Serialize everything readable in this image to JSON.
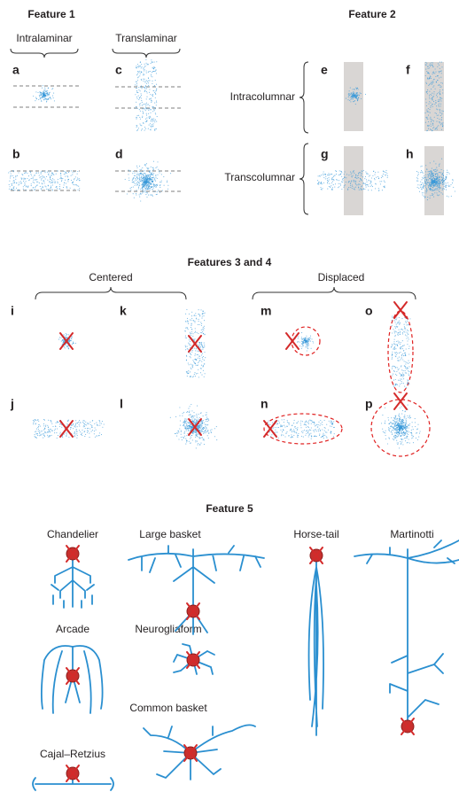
{
  "feature1": {
    "title": "Feature 1",
    "columns": [
      "Intralaminar",
      "Translaminar"
    ],
    "panels": [
      "a",
      "b",
      "c",
      "d"
    ]
  },
  "feature2": {
    "title": "Feature 2",
    "rows": [
      "Intracolumnar",
      "Transcolumnar"
    ],
    "panels": [
      "e",
      "f",
      "g",
      "h"
    ]
  },
  "features34": {
    "title": "Features 3 and 4",
    "groups": [
      "Centered",
      "Displaced"
    ],
    "panels": [
      "i",
      "j",
      "k",
      "l",
      "m",
      "n",
      "o",
      "p"
    ]
  },
  "feature5": {
    "title": "Feature 5",
    "cells": [
      "Chandelier",
      "Large basket",
      "Horse-tail",
      "Martinotti",
      "Arcade",
      "Neurogliaform",
      "Common basket",
      "Cajal–Retzius"
    ]
  }
}
